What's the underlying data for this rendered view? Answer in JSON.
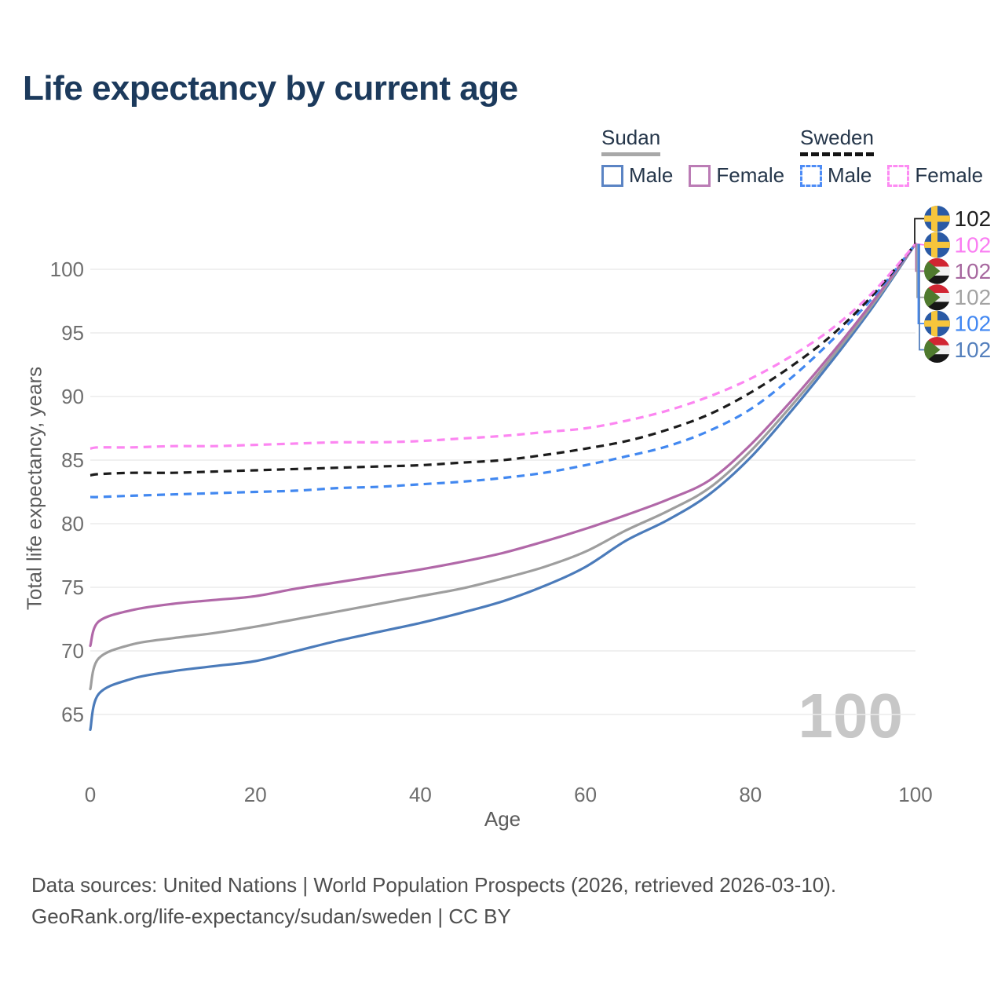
{
  "title": "Life expectancy by current age",
  "watermark": "100",
  "legend": {
    "groups": [
      {
        "name": "Sudan",
        "line_style": "solid",
        "line_color": "#a8a8a8",
        "items": [
          {
            "label": "Male",
            "color": "#5b84c4"
          },
          {
            "label": "Female",
            "color": "#bb7cb5"
          }
        ]
      },
      {
        "name": "Sweden",
        "line_style": "dashed",
        "line_color": "#141414",
        "items": [
          {
            "label": "Male",
            "color": "#4d8cf6"
          },
          {
            "label": "Female",
            "color": "#fd8cf3"
          }
        ]
      }
    ]
  },
  "chart_data": {
    "type": "line",
    "title": "Life expectancy by current age",
    "xlabel": "Age",
    "ylabel": "Total life expectancy, years",
    "x": [
      0,
      1,
      5,
      10,
      15,
      20,
      25,
      30,
      35,
      40,
      45,
      50,
      55,
      60,
      65,
      70,
      75,
      80,
      85,
      90,
      95,
      100
    ],
    "xticks": [
      0,
      20,
      40,
      60,
      80,
      100
    ],
    "yticks": [
      65,
      70,
      75,
      80,
      85,
      90,
      95,
      100
    ],
    "xlim": [
      0,
      100
    ],
    "ylim": [
      63,
      103
    ],
    "grid": "horizontal",
    "legend_position": "top-right",
    "series": [
      {
        "id": "sudan-male",
        "name": "Sudan Male",
        "color": "#4b7bba",
        "dash": false,
        "values": [
          63.8,
          66.6,
          67.8,
          68.4,
          68.8,
          69.2,
          70.0,
          70.8,
          71.5,
          72.2,
          73.0,
          73.9,
          75.1,
          76.6,
          78.7,
          80.3,
          82.3,
          85.2,
          88.9,
          92.9,
          97.2,
          102
        ]
      },
      {
        "id": "sudan-both",
        "name": "Sudan Both sexes",
        "color": "#9e9e9e",
        "dash": false,
        "values": [
          67.0,
          69.4,
          70.5,
          71.0,
          71.4,
          71.9,
          72.5,
          73.1,
          73.7,
          74.3,
          74.9,
          75.7,
          76.6,
          77.8,
          79.5,
          81.0,
          82.8,
          85.7,
          89.3,
          93.2,
          97.4,
          102
        ]
      },
      {
        "id": "sudan-female",
        "name": "Sudan Female",
        "color": "#b168a8",
        "dash": false,
        "values": [
          70.4,
          72.3,
          73.2,
          73.7,
          74.0,
          74.3,
          74.9,
          75.4,
          75.9,
          76.4,
          77.0,
          77.7,
          78.6,
          79.6,
          80.7,
          81.9,
          83.4,
          86.2,
          89.7,
          93.5,
          97.6,
          102
        ]
      },
      {
        "id": "sweden-male",
        "name": "Sweden Male",
        "color": "#4288f0",
        "dash": true,
        "values": [
          82.1,
          82.1,
          82.2,
          82.3,
          82.4,
          82.5,
          82.6,
          82.8,
          82.9,
          83.1,
          83.3,
          83.6,
          84.0,
          84.6,
          85.3,
          86.1,
          87.3,
          89.0,
          91.5,
          94.5,
          97.9,
          102
        ]
      },
      {
        "id": "sweden-both",
        "name": "Sweden Both sexes",
        "color": "#1c1c1c",
        "dash": true,
        "values": [
          83.8,
          83.9,
          84.0,
          84.0,
          84.1,
          84.2,
          84.3,
          84.4,
          84.5,
          84.6,
          84.8,
          85.0,
          85.4,
          85.9,
          86.5,
          87.4,
          88.6,
          90.3,
          92.4,
          94.9,
          98.1,
          102
        ]
      },
      {
        "id": "sweden-female",
        "name": "Sweden Female",
        "color": "#fc86f1",
        "dash": true,
        "values": [
          85.9,
          86.0,
          86.0,
          86.1,
          86.1,
          86.2,
          86.3,
          86.4,
          86.4,
          86.5,
          86.7,
          86.9,
          87.2,
          87.5,
          88.1,
          88.9,
          90.0,
          91.4,
          93.2,
          95.4,
          98.3,
          102
        ]
      }
    ]
  },
  "right_labels": [
    {
      "flag": "sweden",
      "series": "sweden-both",
      "value": "102",
      "color": "#1f1f1f"
    },
    {
      "flag": "sweden",
      "series": "sweden-female",
      "value": "102",
      "color": "#fa7df2"
    },
    {
      "flag": "sudan",
      "series": "sudan-female",
      "value": "102",
      "color": "#a7689f"
    },
    {
      "flag": "sudan",
      "series": "sudan-both",
      "value": "102",
      "color": "#a3a3a3"
    },
    {
      "flag": "sweden",
      "series": "sweden-male",
      "value": "102",
      "color": "#4187f2"
    },
    {
      "flag": "sudan",
      "series": "sudan-male",
      "value": "102",
      "color": "#5580bd"
    }
  ],
  "flags": {
    "sweden": {
      "field": "#2a5aa5",
      "cross": "#f6c53c"
    },
    "sudan": {
      "red": "#d12532",
      "white": "#f0f0f0",
      "black": "#161616",
      "green": "#4f7a2e"
    }
  },
  "footer": {
    "line1": "Data sources: United Nations | World Population Prospects (2026, retrieved 2026-03-10).",
    "line2": "GeoRank.org/life-expectancy/sudan/sweden | CC BY"
  }
}
